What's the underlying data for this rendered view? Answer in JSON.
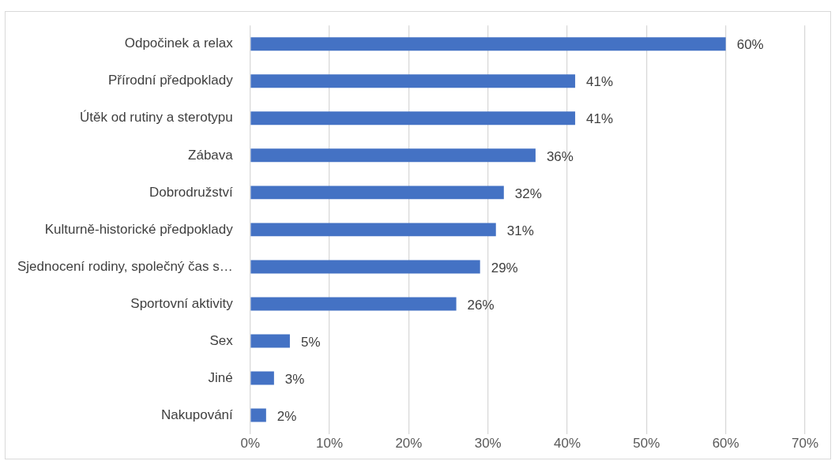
{
  "chart_data": {
    "type": "bar",
    "orientation": "horizontal",
    "categories": [
      "Odpočinek a relax",
      "Přírodní předpoklady",
      "Útěk od rutiny a sterotypu",
      "Zábava",
      "Dobrodružství",
      "Kulturně-historické předpoklady",
      "Sjednocení rodiny, společný čas s…",
      "Sportovní aktivity",
      "Sex",
      "Jiné",
      "Nakupování"
    ],
    "values": [
      60,
      41,
      41,
      36,
      32,
      31,
      29,
      26,
      5,
      3,
      2
    ],
    "value_labels": [
      "60%",
      "41%",
      "41%",
      "36%",
      "32%",
      "31%",
      "29%",
      "26%",
      "5%",
      "3%",
      "2%"
    ],
    "color": "#4472c4",
    "xlim": [
      0,
      70
    ],
    "xticks": [
      {
        "value": 0,
        "label": "0%"
      },
      {
        "value": 10,
        "label": "10%"
      },
      {
        "value": 20,
        "label": "20%"
      },
      {
        "value": 30,
        "label": "30%"
      },
      {
        "value": 40,
        "label": "40%"
      },
      {
        "value": 50,
        "label": "50%"
      },
      {
        "value": 60,
        "label": "60%"
      },
      {
        "value": 70,
        "label": "70%"
      }
    ],
    "grid": "x",
    "legend": false
  }
}
